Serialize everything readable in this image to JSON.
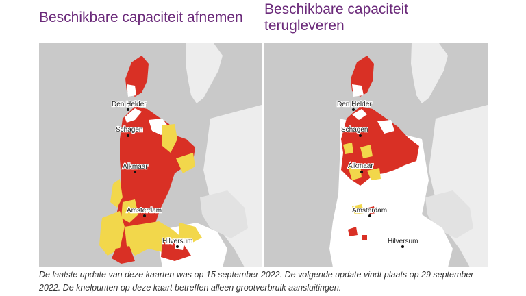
{
  "maps": [
    {
      "title": "Beschikbare capaciteit afnemen",
      "cities": [
        "Den Helder",
        "Schagen",
        "Alkmaar",
        "Amsterdam",
        "Hilversum"
      ]
    },
    {
      "title": "Beschikbare capaciteit terugleveren",
      "cities": [
        "Den Helder",
        "Schagen",
        "Alkmaar",
        "Amsterdam",
        "Hilversum"
      ]
    }
  ],
  "caption": "De laatste update van deze kaarten was op 15 september 2022. De volgende update vindt plaats op 29 september 2022. De knelpunten op deze kaart betreffen alleen grootverbruik aansluitingen.",
  "colors": {
    "title": "#6b2a7a",
    "water": "#c9c9c9",
    "land": "#f4f4f4",
    "island_land": "#ededed",
    "red_zone": "#d93025",
    "yellow_zone": "#f2d74b",
    "white_zone": "#ffffff"
  }
}
